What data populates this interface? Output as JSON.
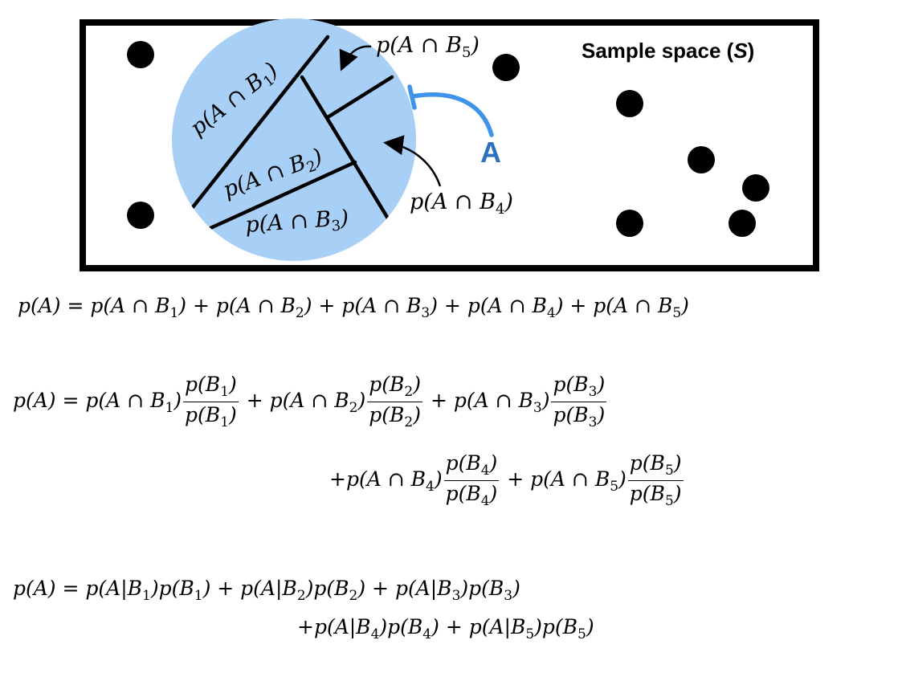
{
  "diagram": {
    "sample_space_label": "Sample space (",
    "sample_space_symbol": "S",
    "sample_space_close": ")",
    "event_label": "A",
    "region_labels": {
      "b1": "p(A ∩ B1)",
      "b2": "p(A ∩ B2)",
      "b3": "p(A ∩ B3)",
      "b4": "p(A ∩ B4)",
      "b5": "p(A ∩ B5)"
    },
    "colors": {
      "event_fill": "#a8d0f7",
      "event_accent": "#3f93ea",
      "label_accent": "#2f6fc0"
    }
  },
  "equations": {
    "eq1": "p(A) = p(A ∩ B1) + p(A ∩ B2) + p(A ∩ B3) + p(A ∩ B4) + p(A ∩ B5)",
    "eq2_line1": "p(A) = p(A ∩ B1) p(B1)/p(B1) + p(A ∩ B2) p(B2)/p(B2) + p(A ∩ B3) p(B3)/p(B3)",
    "eq2_line2": "+p(A ∩ B4) p(B4)/p(B4) + p(A ∩ B5) p(B5)/p(B5)",
    "eq3_line1": "p(A) = p(A|B1)p(B1) + p(A|B2)p(B2) + p(A|B3)p(B3)",
    "eq3_line2": "+p(A|B4)p(B4) + p(A|B5)p(B5)"
  }
}
